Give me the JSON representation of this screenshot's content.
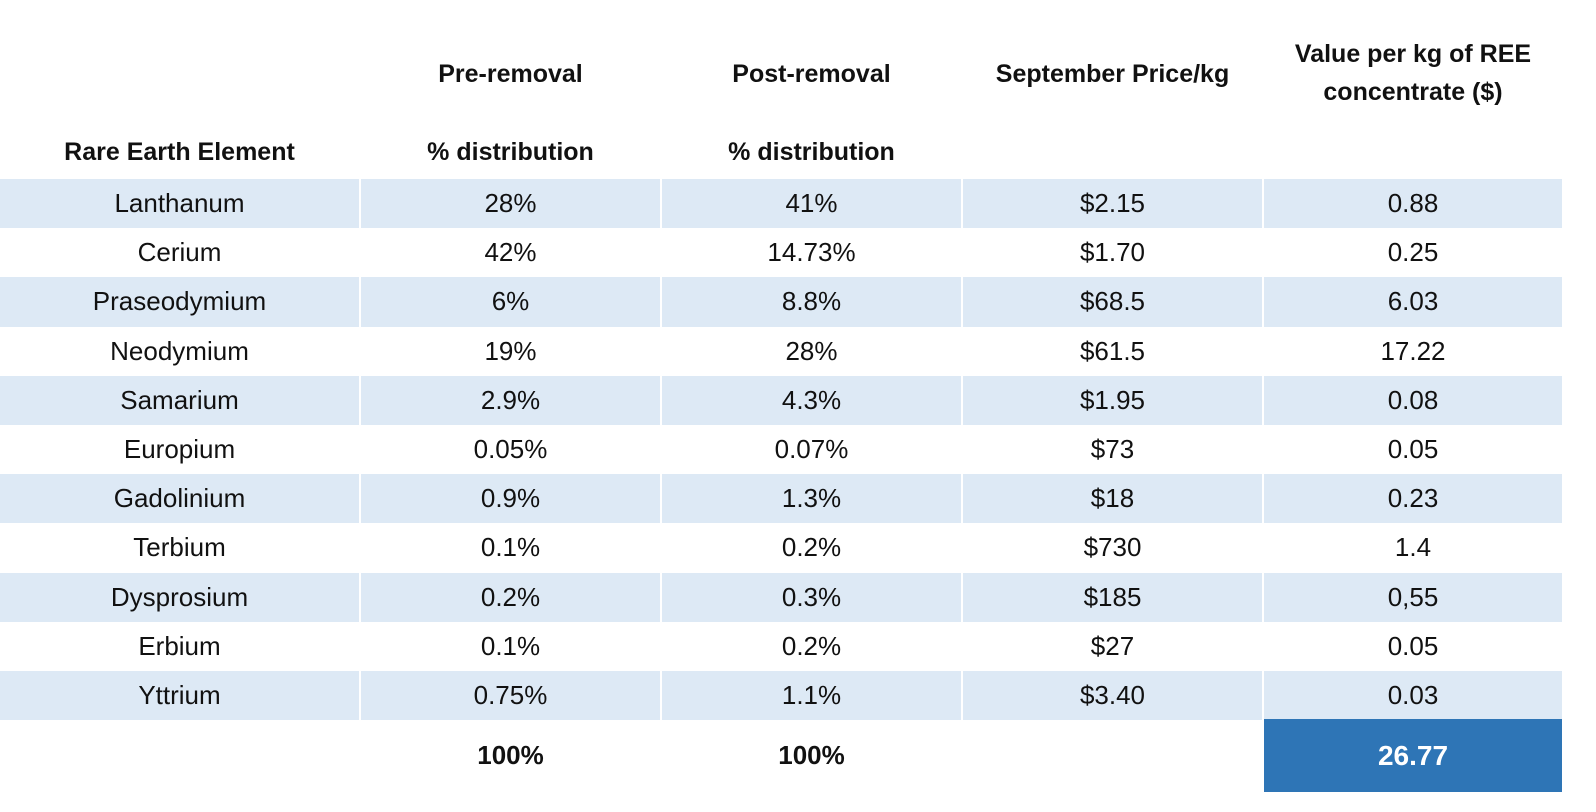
{
  "headers": {
    "element": "Rare Earth Element",
    "pre_line1": "Pre-removal",
    "pre_line2": "% distribution",
    "post_line1": "Post-removal",
    "post_line2": "% distribution",
    "price": "September Price/kg",
    "value_line1": "Value per kg of REE",
    "value_line2": "concentrate ($)"
  },
  "rows": [
    {
      "element": "Lanthanum",
      "pre": "28%",
      "post": "41%",
      "price": "$2.15",
      "value": "0.88"
    },
    {
      "element": "Cerium",
      "pre": "42%",
      "post": "14.73%",
      "price": "$1.70",
      "value": "0.25"
    },
    {
      "element": "Praseodymium",
      "pre": "6%",
      "post": "8.8%",
      "price": "$68.5",
      "value": "6.03"
    },
    {
      "element": "Neodymium",
      "pre": "19%",
      "post": "28%",
      "price": "$61.5",
      "value": "17.22"
    },
    {
      "element": "Samarium",
      "pre": "2.9%",
      "post": "4.3%",
      "price": "$1.95",
      "value": "0.08"
    },
    {
      "element": "Europium",
      "pre": "0.05%",
      "post": "0.07%",
      "price": "$73",
      "value": "0.05"
    },
    {
      "element": "Gadolinium",
      "pre": "0.9%",
      "post": "1.3%",
      "price": "$18",
      "value": "0.23"
    },
    {
      "element": "Terbium",
      "pre": "0.1%",
      "post": "0.2%",
      "price": "$730",
      "value": "1.4"
    },
    {
      "element": "Dysprosium",
      "pre": "0.2%",
      "post": "0.3%",
      "price": "$185",
      "value": "0,55"
    },
    {
      "element": "Erbium",
      "pre": "0.1%",
      "post": "0.2%",
      "price": "$27",
      "value": "0.05"
    },
    {
      "element": "Yttrium",
      "pre": "0.75%",
      "post": "1.1%",
      "price": "$3.40",
      "value": "0.03"
    }
  ],
  "totals": {
    "pre": "100%",
    "post": "100%",
    "value": "26.77"
  },
  "colors": {
    "row_shade": "#dde9f5",
    "total_highlight": "#2e75b6"
  }
}
